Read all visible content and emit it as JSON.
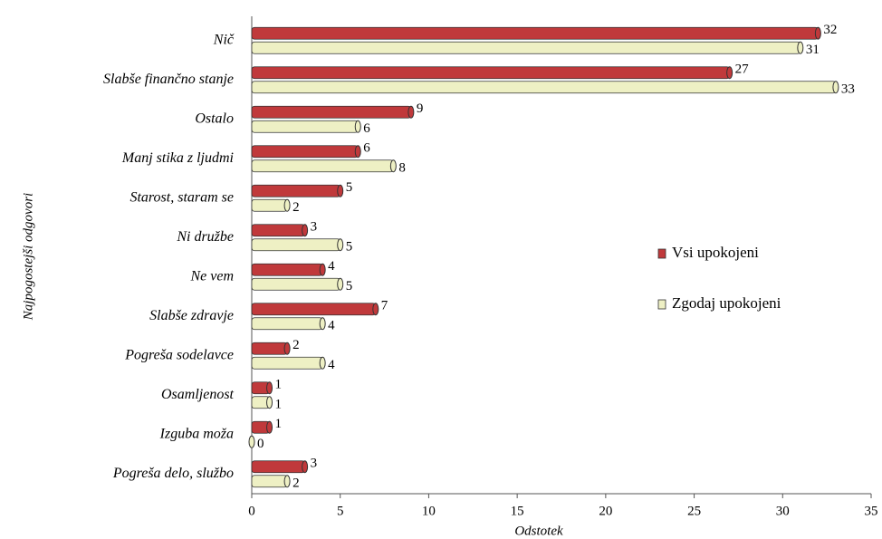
{
  "chart_data": {
    "type": "bar",
    "orientation": "horizontal",
    "x_label": "Odstotek",
    "y_label": "Najpogostejši odgovori",
    "categories": [
      "Nič",
      "Slabše finančno stanje",
      "Ostalo",
      "Manj stika z ljudmi",
      "Starost, staram se",
      "Ni družbe",
      "Ne vem",
      "Slabše zdravje",
      "Pogreša sodelavce",
      "Osamljenost",
      "Izguba moža",
      "Pogreša delo, službo"
    ],
    "series": [
      {
        "name": "Vsi upokojeni",
        "color": "#c0393b",
        "values": [
          32,
          27,
          9,
          6,
          5,
          3,
          4,
          7,
          2,
          1,
          1,
          3
        ]
      },
      {
        "name": "Zgodaj upokojeni",
        "color": "#eef0c4",
        "values": [
          31,
          33,
          6,
          8,
          2,
          5,
          5,
          4,
          4,
          1,
          0,
          2
        ]
      }
    ],
    "xlim": [
      0,
      35
    ],
    "xticks": [
      0,
      5,
      10,
      15,
      20,
      25,
      30,
      35
    ],
    "grid": false,
    "legend": "right"
  }
}
